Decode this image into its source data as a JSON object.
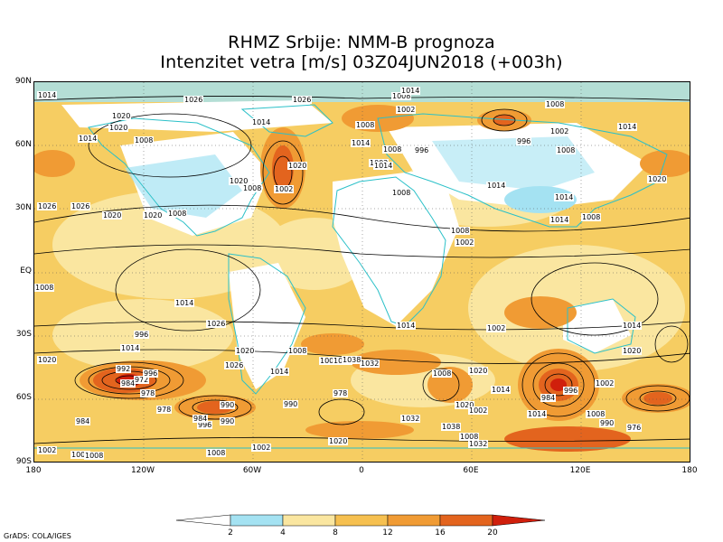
{
  "title": {
    "line1": "RHMZ Srbije: NMM-B prognoza",
    "line2": "Intenzitet vetra [m/s] 03Z04JUN2018 (+003h)"
  },
  "axes": {
    "lat_labels": [
      "90N",
      "60N",
      "30N",
      "EQ",
      "30S",
      "60S",
      "90S"
    ],
    "lon_labels": [
      "180",
      "120W",
      "60W",
      "0",
      "60E",
      "120E",
      "180"
    ]
  },
  "colorbar": {
    "ticks": [
      "2",
      "4",
      "8",
      "12",
      "16",
      "20"
    ],
    "colors": [
      "#ffffff",
      "#a4e2f2",
      "#fae6a0",
      "#f6c050",
      "#f09b34",
      "#e3641e",
      "#d01f0c"
    ]
  },
  "isobar_labels": [
    "1014",
    "1026",
    "1020",
    "1026",
    "1014",
    "1008",
    "1002",
    "1008",
    "1014",
    "1008",
    "1014",
    "1020",
    "1014",
    "1020",
    "1008",
    "1002",
    "1008",
    "996",
    "996",
    "1002",
    "1008",
    "1008",
    "1014",
    "1014",
    "1020",
    "1014",
    "1020",
    "1014",
    "1008",
    "1002",
    "1008",
    "1002",
    "1014",
    "1014",
    "1008",
    "1020",
    "1008",
    "1014",
    "1014",
    "1020",
    "1008",
    "1014",
    "1002",
    "1026",
    "1026",
    "1020",
    "1020",
    "1002",
    "1032",
    "1014",
    "1008",
    "1002",
    "1008",
    "1014",
    "1020",
    "996",
    "992",
    "984",
    "978",
    "972",
    "984",
    "978",
    "990",
    "996",
    "990",
    "984",
    "990",
    "978",
    "1032",
    "1038",
    "1020",
    "1002",
    "1014",
    "1008",
    "990",
    "984",
    "996",
    "1002",
    "976",
    "1008",
    "1002",
    "1008",
    "1020",
    "1002",
    "1002",
    "1008",
    "1032",
    "1026",
    "1038",
    "1020",
    "996",
    "1026"
  ],
  "credit": "GrADS: COLA/IGES",
  "colors": {
    "coast": "#2bc0c8",
    "isobar": "#000000",
    "strong_wind": "#d9420f",
    "calm": "#ffffff"
  }
}
